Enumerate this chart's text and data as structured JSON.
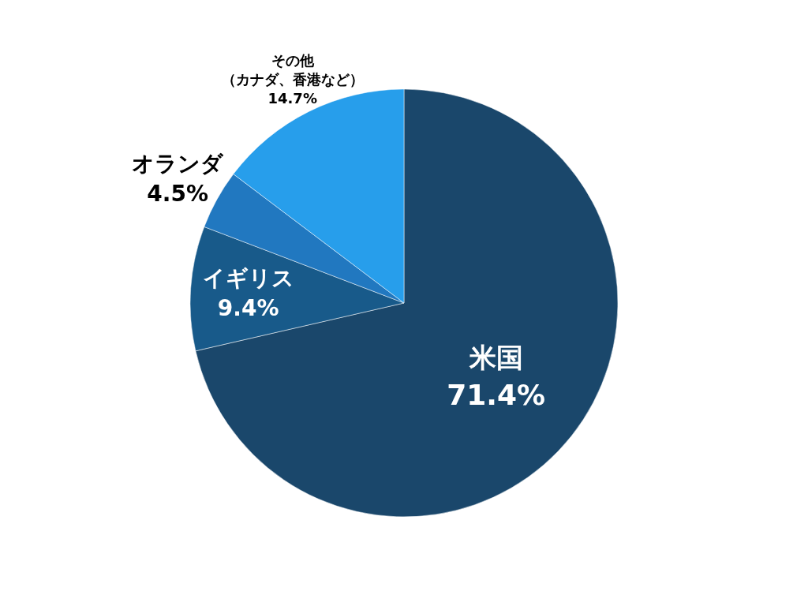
{
  "chart_data": {
    "type": "pie",
    "categories": [
      "米国",
      "イギリス",
      "オランダ",
      "その他（カナダ、香港など）"
    ],
    "values": [
      71.4,
      9.4,
      4.5,
      14.7
    ],
    "value_labels": [
      "71.4%",
      "9.4%",
      "4.5%",
      "14.7%"
    ],
    "colors": [
      "#1a476b",
      "#185a8a",
      "#2178c0",
      "#279eeb"
    ]
  }
}
